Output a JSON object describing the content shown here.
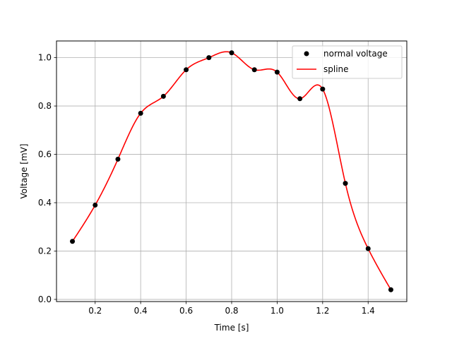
{
  "chart_data": {
    "type": "line",
    "title": "",
    "xlabel": "Time [s]",
    "ylabel": "Voltage [mV]",
    "xlim": [
      0.03,
      1.57
    ],
    "ylim": [
      -0.009,
      1.069
    ],
    "xticks": [
      "0.2",
      "0.4",
      "0.6",
      "0.8",
      "1.0",
      "1.2",
      "1.4"
    ],
    "yticks": [
      "0.0",
      "0.2",
      "0.4",
      "0.6",
      "0.8",
      "1.0"
    ],
    "grid": true,
    "legend_position": "top-right",
    "series": [
      {
        "name": "normal voltage",
        "kind": "scatter",
        "color": "#000000",
        "x": [
          0.1,
          0.2,
          0.3,
          0.4,
          0.5,
          0.6,
          0.7,
          0.8,
          0.9,
          1.0,
          1.1,
          1.2,
          1.3,
          1.4,
          1.5
        ],
        "y": [
          0.24,
          0.39,
          0.58,
          0.77,
          0.84,
          0.95,
          1.0,
          1.02,
          0.95,
          0.94,
          0.83,
          0.87,
          0.48,
          0.21,
          0.04
        ]
      },
      {
        "name": "spline",
        "kind": "line",
        "color": "#ff0000",
        "x": [
          0.1,
          0.2,
          0.3,
          0.4,
          0.5,
          0.6,
          0.7,
          0.8,
          0.9,
          1.0,
          1.1,
          1.2,
          1.3,
          1.4,
          1.5
        ],
        "y": [
          0.24,
          0.39,
          0.58,
          0.77,
          0.84,
          0.95,
          1.0,
          1.02,
          0.95,
          0.94,
          0.83,
          0.87,
          0.48,
          0.21,
          0.04
        ]
      }
    ]
  }
}
